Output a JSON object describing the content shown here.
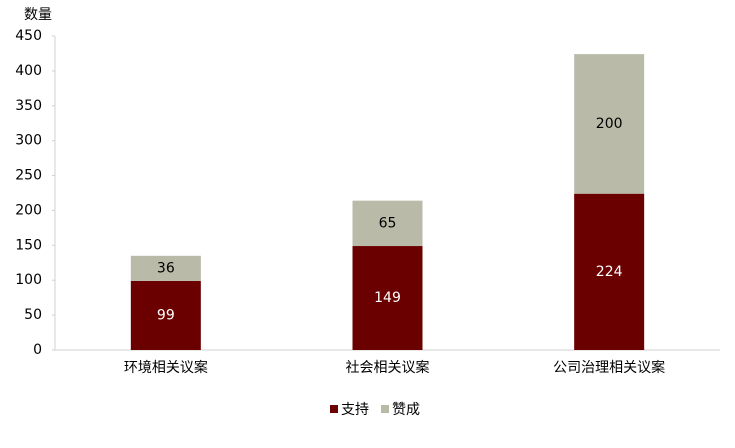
{
  "chart_data": {
    "type": "stacked_bar",
    "y_label": "数量",
    "categories": [
      "环境相关议案",
      "社会相关议案",
      "公司治理相关议案"
    ],
    "series": [
      {
        "name": "支持",
        "color": "#6b0000",
        "values": [
          99,
          149,
          224
        ]
      },
      {
        "name": "赞成",
        "color": "#b9baa8",
        "values": [
          36,
          65,
          200
        ]
      }
    ],
    "ylim": [
      0,
      450
    ],
    "yticks": [
      0,
      50,
      100,
      150,
      200,
      250,
      300,
      350,
      400,
      450
    ],
    "grid": false,
    "legend": "bottom"
  }
}
